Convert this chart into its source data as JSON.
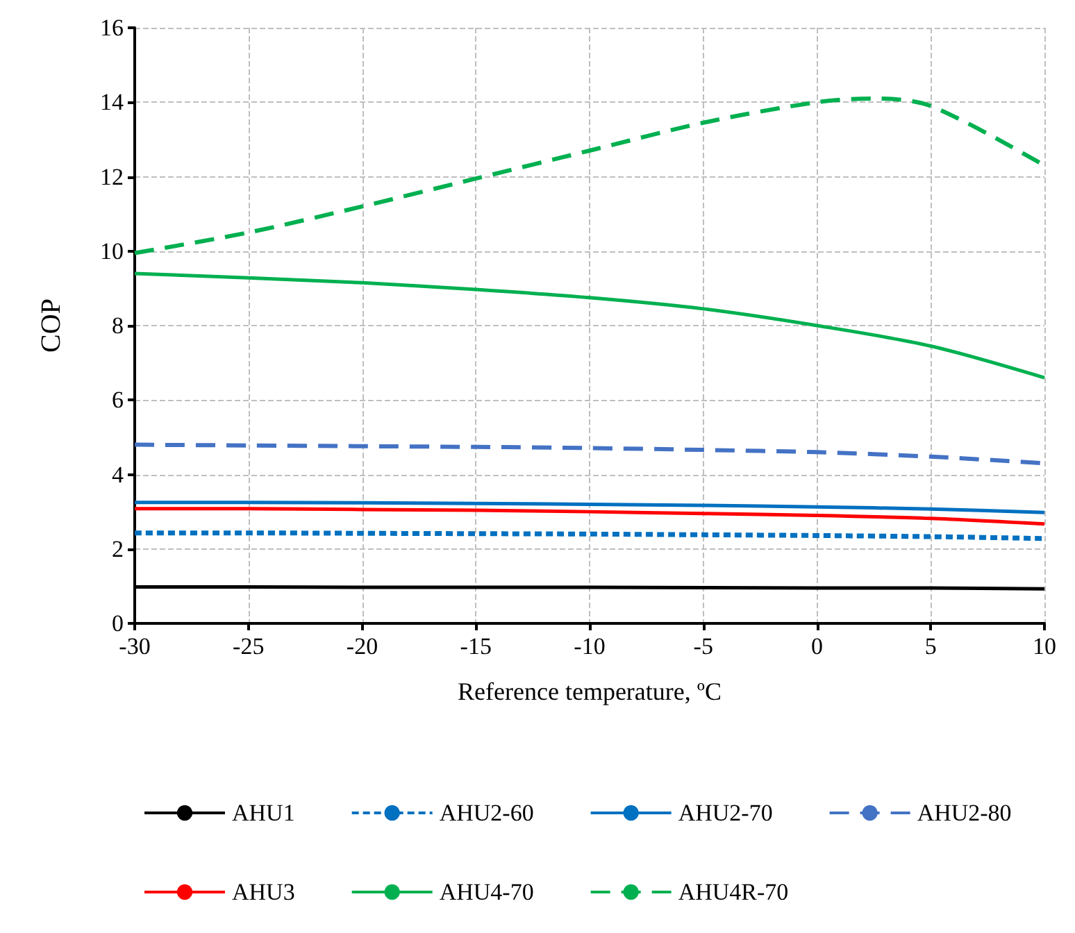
{
  "chart_data": {
    "type": "line",
    "xlabel": "Reference temperature, ºC",
    "ylabel": "COP",
    "xlim": [
      -30,
      10
    ],
    "xticks": [
      -30,
      -25,
      -20,
      -15,
      -10,
      -5,
      0,
      5,
      10
    ],
    "ylim": [
      0,
      16
    ],
    "yticks": [
      0,
      2,
      4,
      6,
      8,
      10,
      12,
      14,
      16
    ],
    "grid": true,
    "legend": "bottom",
    "marker": "none",
    "x": [
      -30,
      -25,
      -20,
      -15,
      -10,
      -5,
      0,
      5,
      10
    ],
    "series": [
      {
        "name": "AHU1",
        "color": "#000000",
        "line_style": "solid",
        "values": [
          0.98,
          0.98,
          0.97,
          0.97,
          0.97,
          0.96,
          0.95,
          0.95,
          0.93
        ]
      },
      {
        "name": "AHU2-60",
        "color": "#0070c0",
        "line_style": "dotted",
        "values": [
          2.43,
          2.43,
          2.42,
          2.41,
          2.4,
          2.38,
          2.36,
          2.33,
          2.28
        ]
      },
      {
        "name": "AHU2-70",
        "color": "#0070c0",
        "line_style": "solid",
        "values": [
          3.25,
          3.25,
          3.24,
          3.22,
          3.2,
          3.17,
          3.13,
          3.07,
          2.98
        ]
      },
      {
        "name": "AHU2-80",
        "color": "#4472c4",
        "line_style": "dashed",
        "values": [
          4.8,
          4.78,
          4.76,
          4.74,
          4.71,
          4.66,
          4.6,
          4.48,
          4.3
        ]
      },
      {
        "name": "AHU3",
        "color": "#ff0000",
        "line_style": "solid",
        "values": [
          3.08,
          3.08,
          3.06,
          3.04,
          3.0,
          2.95,
          2.9,
          2.82,
          2.67
        ]
      },
      {
        "name": "AHU4-70",
        "color": "#00b050",
        "line_style": "solid",
        "values": [
          9.4,
          9.28,
          9.15,
          8.97,
          8.75,
          8.45,
          8.0,
          7.45,
          6.6
        ]
      },
      {
        "name": "AHU4R-70",
        "color": "#00b050",
        "line_style": "dashed",
        "x": [
          -30,
          -25,
          -20,
          -15,
          -10,
          -5,
          0,
          2.5,
          5,
          10
        ],
        "values": [
          9.95,
          10.5,
          11.2,
          11.95,
          12.7,
          13.45,
          14.0,
          14.1,
          13.9,
          12.3
        ]
      }
    ]
  }
}
